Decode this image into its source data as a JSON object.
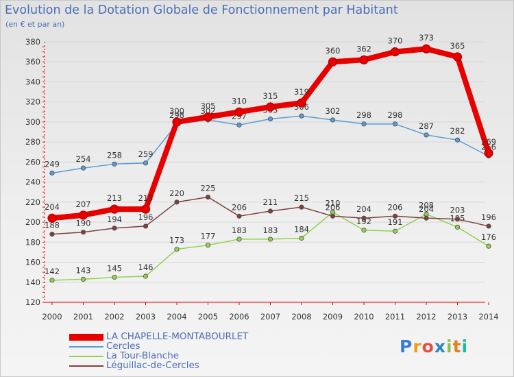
{
  "title": "Evolution de la Dotation Globale de Fonctionnement par Habitant",
  "subtitle": "(en € et par an)",
  "chart_data": {
    "type": "line",
    "title": "Evolution de la Dotation Globale de Fonctionnement par Habitant",
    "subtitle": "(en € et par an)",
    "xlabel": "",
    "ylabel": "",
    "ylim": [
      120,
      380
    ],
    "ytick_step": 20,
    "grid": "horizontal",
    "legend_position": "bottom-left",
    "x": [
      "2000",
      "2001",
      "2002",
      "2003",
      "2004",
      "2005",
      "2006",
      "2007",
      "2008",
      "2009",
      "2010",
      "2011",
      "2012",
      "2013",
      "2014"
    ],
    "series": [
      {
        "name": "LA CHAPELLE-MONTABOURLET",
        "color": "#e80000",
        "emphasis": true,
        "values": [
          204,
          207,
          213,
          213,
          300,
          305,
          310,
          315,
          319,
          360,
          362,
          370,
          373,
          365,
          269
        ]
      },
      {
        "name": "Cercles",
        "color": "#5b9bd5",
        "emphasis": false,
        "values": [
          249,
          254,
          258,
          259,
          298,
          302,
          297,
          303,
          306,
          302,
          298,
          298,
          287,
          282,
          266
        ]
      },
      {
        "name": "La Tour-Blanche",
        "color": "#92d050",
        "emphasis": false,
        "values": [
          142,
          143,
          145,
          146,
          173,
          177,
          183,
          183,
          184,
          210,
          192,
          191,
          208,
          195,
          176
        ]
      },
      {
        "name": "Léguillac-de-Cercles",
        "color": "#7f3f3f",
        "emphasis": false,
        "values": [
          188,
          190,
          194,
          196,
          220,
          225,
          206,
          211,
          215,
          206,
          204,
          206,
          204,
          203,
          196
        ]
      }
    ]
  },
  "logo": {
    "text": "Proxiti",
    "colors": [
      "#3a7bd5",
      "#f39c12",
      "#e74c3c",
      "#2e86c1",
      "#8bc34a",
      "#e67e22",
      "#1abc9c"
    ]
  }
}
